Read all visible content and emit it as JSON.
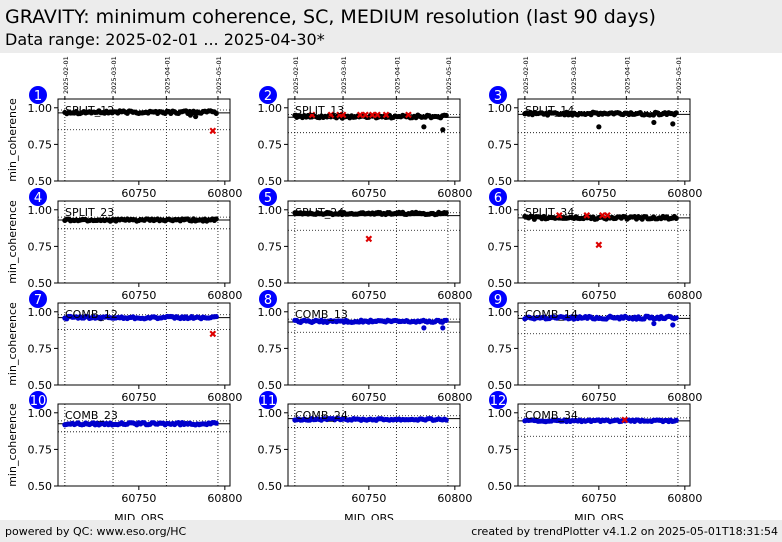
{
  "header": {
    "title": "GRAVITY: minimum coherence, SC, MEDIUM resolution (last 90 days)",
    "subtitle": "Data range: 2025-02-01 ... 2025-04-30*"
  },
  "footer": {
    "left": "powered by QC: www.eso.org/HC",
    "right": "created by trendPlotter v4.1.2 on 2025-05-01T18:31:54"
  },
  "chart_data": {
    "type": "scatter",
    "ylabel": "min_coherence",
    "xlabel": "MJD_OBS",
    "xlim": [
      60703,
      60803
    ],
    "ylim": [
      0.5,
      1.06
    ],
    "x_ticks": [
      60750,
      60800
    ],
    "y_ticks": [
      "0.50",
      "0.75",
      "1.00"
    ],
    "y_tick_values": [
      0.5,
      0.75,
      1.0
    ],
    "date_ticks": [
      {
        "label": "2025-02-01",
        "mjd": 60707
      },
      {
        "label": "2025-03-01",
        "mjd": 60735
      },
      {
        "label": "2025-04-01",
        "mjd": 60766
      },
      {
        "label": "2025-05-01",
        "mjd": 60796
      }
    ],
    "colors": {
      "split": "#000000",
      "comb": "#0000cc",
      "outlier": "#dd0000",
      "badge": "#0000ff"
    },
    "panels": [
      {
        "index": "1",
        "name": "SPLIT_12",
        "group": "split",
        "base": 0.97,
        "scatter": 0.01,
        "ref": 0.965,
        "limit": 0.85,
        "outliers": [
          [
            60793,
            0.84
          ]
        ],
        "extra": [
          [
            60780,
            0.95
          ],
          [
            60783,
            0.94
          ]
        ]
      },
      {
        "index": "2",
        "name": "SPLIT_13",
        "group": "split",
        "base": 0.94,
        "scatter": 0.01,
        "ref": 0.935,
        "limit": 0.83,
        "outliers": [
          [
            60717,
            0.95
          ],
          [
            60728,
            0.95
          ],
          [
            60733,
            0.95
          ],
          [
            60735,
            0.95
          ],
          [
            60745,
            0.95
          ],
          [
            60748,
            0.95
          ],
          [
            60752,
            0.95
          ],
          [
            60755,
            0.95
          ],
          [
            60760,
            0.95
          ],
          [
            60773,
            0.95
          ]
        ],
        "extra": [
          [
            60782,
            0.87
          ],
          [
            60793,
            0.85
          ]
        ]
      },
      {
        "index": "3",
        "name": "SPLIT_14",
        "group": "split",
        "base": 0.96,
        "scatter": 0.01,
        "ref": 0.955,
        "limit": 0.83,
        "outliers": [],
        "extra": [
          [
            60750,
            0.87
          ],
          [
            60782,
            0.9
          ],
          [
            60793,
            0.89
          ]
        ]
      },
      {
        "index": "4",
        "name": "SPLIT_23",
        "group": "split",
        "base": 0.93,
        "scatter": 0.008,
        "ref": 0.93,
        "limit": 0.87,
        "outliers": [],
        "extra": []
      },
      {
        "index": "5",
        "name": "SPLIT_24",
        "group": "split",
        "base": 0.975,
        "scatter": 0.008,
        "ref": 0.96,
        "limit": 0.86,
        "outliers": [
          [
            60750,
            0.8
          ]
        ],
        "extra": []
      },
      {
        "index": "6",
        "name": "SPLIT_34",
        "group": "split",
        "base": 0.945,
        "scatter": 0.01,
        "ref": 0.945,
        "limit": 0.86,
        "outliers": [
          [
            60727,
            0.96
          ],
          [
            60743,
            0.96
          ],
          [
            60750,
            0.76
          ],
          [
            60752,
            0.96
          ],
          [
            60755,
            0.96
          ]
        ],
        "extra": []
      },
      {
        "index": "7",
        "name": "COMB_12",
        "group": "comb",
        "base": 0.96,
        "scatter": 0.008,
        "ref": 0.96,
        "limit": 0.88,
        "outliers": [
          [
            60793,
            0.85
          ]
        ],
        "extra": []
      },
      {
        "index": "8",
        "name": "COMB_13",
        "group": "comb",
        "base": 0.935,
        "scatter": 0.008,
        "ref": 0.93,
        "limit": 0.86,
        "outliers": [],
        "extra": [
          [
            60782,
            0.89
          ],
          [
            60793,
            0.89
          ]
        ]
      },
      {
        "index": "9",
        "name": "COMB_14",
        "group": "comb",
        "base": 0.96,
        "scatter": 0.01,
        "ref": 0.955,
        "limit": 0.85,
        "outliers": [],
        "extra": [
          [
            60782,
            0.92
          ],
          [
            60793,
            0.91
          ]
        ]
      },
      {
        "index": "10",
        "name": "COMB_23",
        "group": "comb",
        "base": 0.925,
        "scatter": 0.008,
        "ref": 0.925,
        "limit": 0.87,
        "outliers": [],
        "extra": []
      },
      {
        "index": "11",
        "name": "COMB_24",
        "group": "comb",
        "base": 0.955,
        "scatter": 0.006,
        "ref": 0.96,
        "limit": 0.9,
        "outliers": [],
        "extra": []
      },
      {
        "index": "12",
        "name": "COMB_34",
        "group": "comb",
        "base": 0.945,
        "scatter": 0.006,
        "ref": 0.945,
        "limit": 0.84,
        "outliers": [
          [
            60765,
            0.95
          ]
        ],
        "extra": []
      }
    ]
  }
}
